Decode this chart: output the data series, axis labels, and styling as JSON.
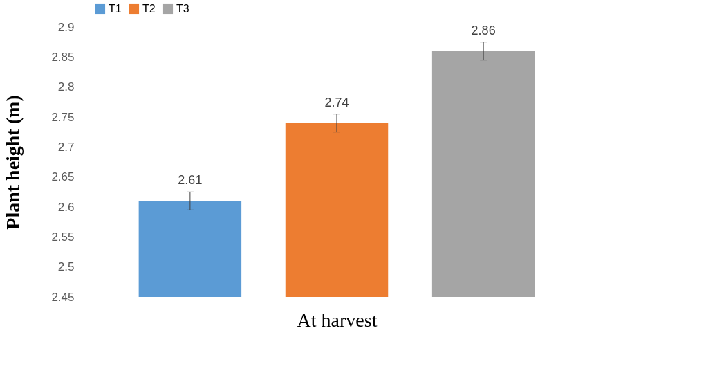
{
  "chart_data": {
    "type": "bar",
    "xlabel": "At harvest",
    "ylabel": "Plant height (m)",
    "categories": [
      null
    ],
    "series": [
      {
        "name": "T1",
        "color": "#5b9bd5",
        "values": [
          2.61
        ],
        "errors": [
          0.015
        ]
      },
      {
        "name": "T2",
        "color": "#ed7d31",
        "values": [
          2.74
        ],
        "errors": [
          0.015
        ]
      },
      {
        "name": "T3",
        "color": "#a5a5a5",
        "values": [
          2.86
        ],
        "errors": [
          0.015
        ]
      }
    ],
    "ylim": [
      2.45,
      2.9
    ],
    "yticks": [
      2.45,
      2.5,
      2.55,
      2.6,
      2.65,
      2.7,
      2.75,
      2.8,
      2.85,
      2.9
    ],
    "grid": false,
    "legend": "top",
    "data_labels": true
  }
}
